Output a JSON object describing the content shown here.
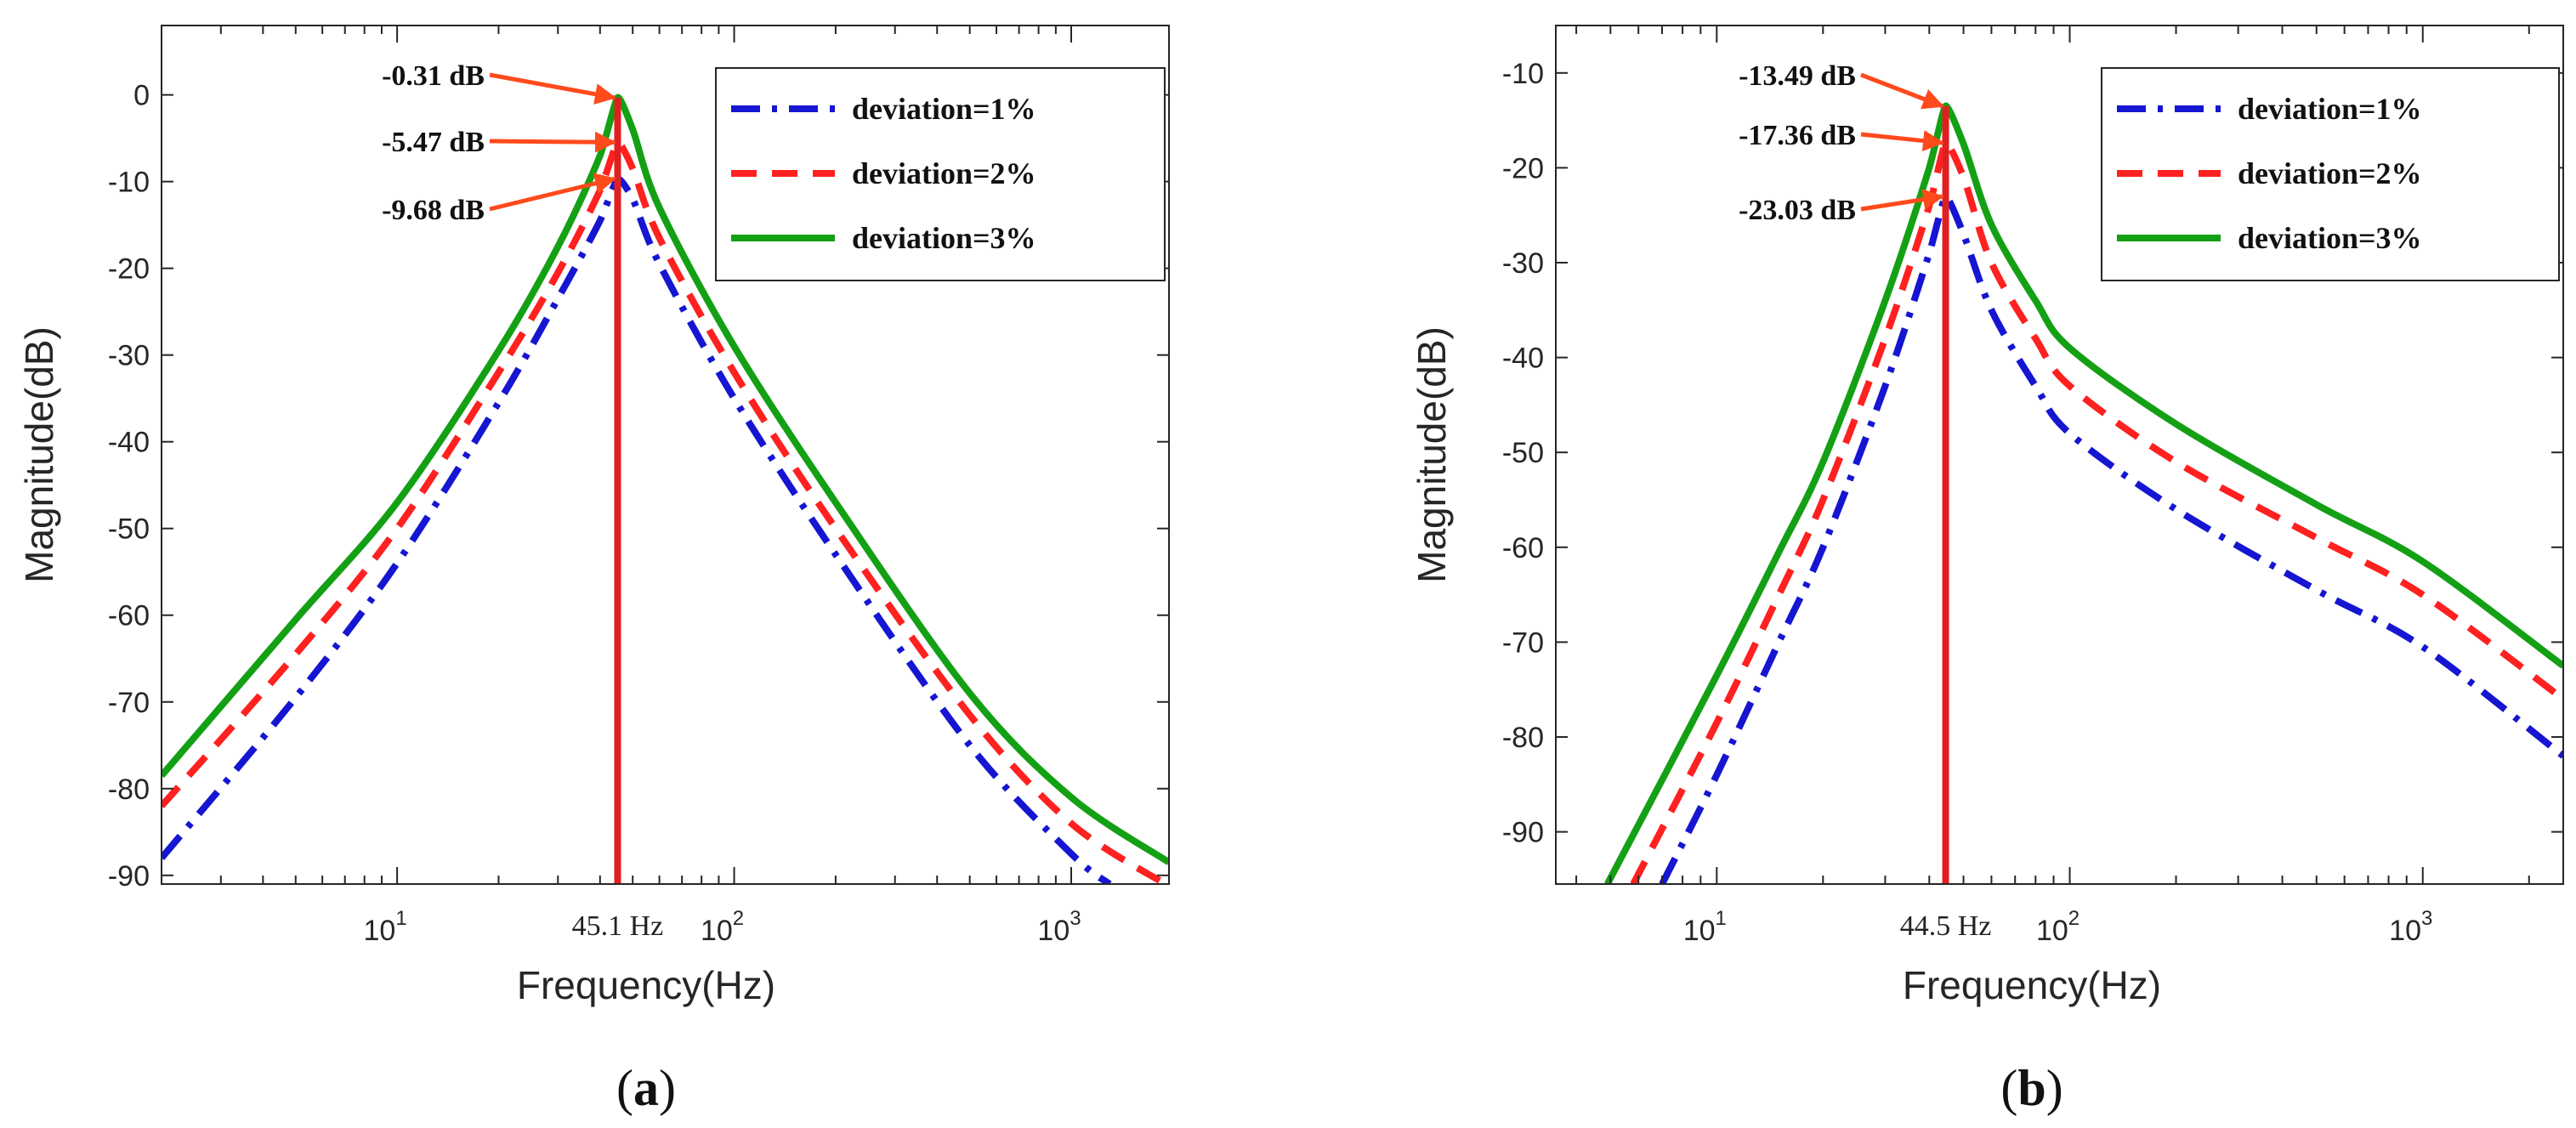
{
  "chart_data": [
    {
      "type": "line",
      "panel_label": "a",
      "xlabel": "Frequency(Hz)",
      "ylabel": "Magnitude(dB)",
      "xscale": "log",
      "xlim": [
        2,
        1950
      ],
      "ylim": [
        -91,
        8
      ],
      "yticks": [
        0,
        -10,
        -20,
        -30,
        -40,
        -50,
        -60,
        -70,
        -80,
        -90
      ],
      "xticks": [
        {
          "base": "10",
          "exp": "1",
          "value": 10
        },
        {
          "base": "10",
          "exp": "2",
          "value": 100
        },
        {
          "base": "10",
          "exp": "3",
          "value": 1000
        }
      ],
      "resonance": {
        "frequency": 45.1,
        "label": "45.1 Hz",
        "color": "#e02020"
      },
      "legend_position": "top-right",
      "series": [
        {
          "name": "deviation=1%",
          "color": "#1515d2",
          "style": "dash-dot",
          "peak_db": -9.68,
          "x": [
            2,
            5,
            10,
            20,
            30,
            40,
            45.1,
            50,
            60,
            100,
            200,
            500,
            1000,
            1300
          ],
          "y": [
            -88,
            -69.5,
            -54,
            -35.5,
            -23.5,
            -14.5,
            -9.68,
            -12,
            -19.5,
            -35,
            -53,
            -75,
            -87.5,
            -91
          ]
        },
        {
          "name": "deviation=2%",
          "color": "#ff2020",
          "style": "dashed",
          "peak_db": -5.47,
          "x": [
            2,
            5,
            10,
            20,
            30,
            40,
            45.1,
            50,
            60,
            100,
            200,
            500,
            1000,
            1900
          ],
          "y": [
            -82,
            -64.5,
            -50,
            -32,
            -20.5,
            -11,
            -5.47,
            -8.5,
            -16.5,
            -32,
            -50,
            -71.5,
            -84,
            -91
          ]
        },
        {
          "name": "deviation=3%",
          "color": "#14a014",
          "style": "solid",
          "peak_db": -0.31,
          "x": [
            2,
            5,
            10,
            20,
            30,
            40,
            45.1,
            50,
            60,
            100,
            200,
            500,
            1000,
            1950
          ],
          "y": [
            -78.5,
            -60.5,
            -47,
            -29.5,
            -17.5,
            -7,
            -0.31,
            -4,
            -13,
            -29,
            -47,
            -69,
            -81,
            -88.5
          ]
        }
      ],
      "annotations": [
        {
          "text": "-0.31 dB",
          "x": 45.1,
          "y": -0.31
        },
        {
          "text": "-5.47 dB",
          "x": 45.1,
          "y": -5.47
        },
        {
          "text": "-9.68 dB",
          "x": 45.1,
          "y": -9.68
        }
      ]
    },
    {
      "type": "line",
      "panel_label": "b",
      "xlabel": "Frequency(Hz)",
      "ylabel": "Magnitude(dB)",
      "xscale": "log",
      "xlim": [
        3.5,
        2500
      ],
      "ylim": [
        -95.5,
        -5
      ],
      "yticks": [
        -10,
        -20,
        -30,
        -40,
        -50,
        -60,
        -70,
        -80,
        -90
      ],
      "xticks": [
        {
          "base": "10",
          "exp": "1",
          "value": 10
        },
        {
          "base": "10",
          "exp": "2",
          "value": 100
        },
        {
          "base": "10",
          "exp": "3",
          "value": 1000
        }
      ],
      "resonance": {
        "frequency": 44.5,
        "label": "44.5 Hz",
        "color": "#e02020"
      },
      "legend_position": "top-right",
      "series": [
        {
          "name": "deviation=1%",
          "color": "#1515d2",
          "style": "dash-dot",
          "peak_db": -23.03,
          "x": [
            7,
            10,
            15,
            20,
            30,
            40,
            44.5,
            50,
            60,
            80,
            100,
            200,
            500,
            1000,
            2500
          ],
          "y": [
            -95.5,
            -84,
            -70,
            -60,
            -43,
            -29,
            -23.03,
            -27,
            -35,
            -43,
            -48,
            -56,
            -64.5,
            -70.5,
            -82
          ]
        },
        {
          "name": "deviation=2%",
          "color": "#ff2020",
          "style": "dashed",
          "peak_db": -17.36,
          "x": [
            5.8,
            10,
            15,
            20,
            30,
            40,
            44.5,
            50,
            60,
            80,
            100,
            200,
            500,
            1000,
            2500
          ],
          "y": [
            -95.5,
            -78.5,
            -65,
            -55,
            -38,
            -24,
            -17.36,
            -21,
            -30,
            -38,
            -43,
            -51,
            -59,
            -65,
            -76
          ]
        },
        {
          "name": "deviation=3%",
          "color": "#14a014",
          "style": "solid",
          "peak_db": -13.49,
          "x": [
            4.9,
            10,
            15,
            20,
            30,
            40,
            44.5,
            50,
            60,
            80,
            100,
            200,
            500,
            1000,
            2500
          ],
          "y": [
            -95.5,
            -73.5,
            -60.5,
            -51,
            -34,
            -20,
            -13.49,
            -17.5,
            -26,
            -34,
            -39,
            -47,
            -55.5,
            -61.5,
            -72.5
          ]
        }
      ],
      "annotations": [
        {
          "text": "-13.49 dB",
          "x": 44.5,
          "y": -13.49
        },
        {
          "text": "-17.36 dB",
          "x": 44.5,
          "y": -17.36
        },
        {
          "text": "-23.03 dB",
          "x": 44.5,
          "y": -23.03
        }
      ]
    }
  ]
}
